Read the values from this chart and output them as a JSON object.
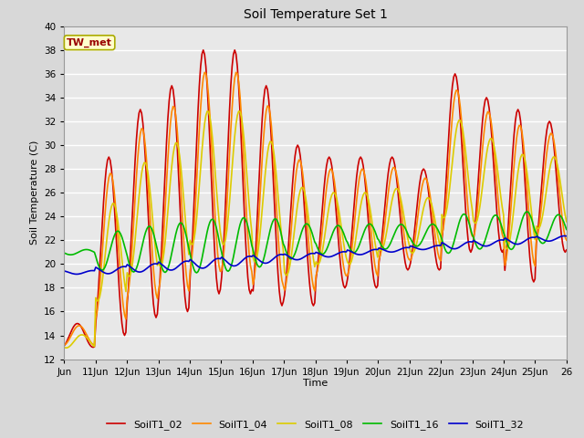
{
  "title": "Soil Temperature Set 1",
  "xlabel": "Time",
  "ylabel": "Soil Temperature (C)",
  "xlim": [
    0,
    16
  ],
  "ylim": [
    12,
    40
  ],
  "yticks": [
    12,
    14,
    16,
    18,
    20,
    22,
    24,
    26,
    28,
    30,
    32,
    34,
    36,
    38,
    40
  ],
  "xtick_labels": [
    "Jun",
    "11Jun",
    "12Jun",
    "13Jun",
    "14Jun",
    "15Jun",
    "16Jun",
    "17Jun",
    "18Jun",
    "19Jun",
    "20Jun",
    "21Jun",
    "22Jun",
    "23Jun",
    "24Jun",
    "25Jun",
    "26"
  ],
  "xtick_positions": [
    0,
    1,
    2,
    3,
    4,
    5,
    6,
    7,
    8,
    9,
    10,
    11,
    12,
    13,
    14,
    15,
    16
  ],
  "annotation_text": "TW_met",
  "bg_color": "#e8e8e8",
  "fig_color": "#d8d8d8",
  "series": {
    "SoilT1_02": {
      "color": "#cc0000",
      "linewidth": 1.2
    },
    "SoilT1_04": {
      "color": "#ff8800",
      "linewidth": 1.2
    },
    "SoilT1_08": {
      "color": "#ddcc00",
      "linewidth": 1.2
    },
    "SoilT1_16": {
      "color": "#00bb00",
      "linewidth": 1.2
    },
    "SoilT1_32": {
      "color": "#0000cc",
      "linewidth": 1.2
    }
  },
  "grid_color": "#ffffff",
  "grid_linewidth": 1.0
}
